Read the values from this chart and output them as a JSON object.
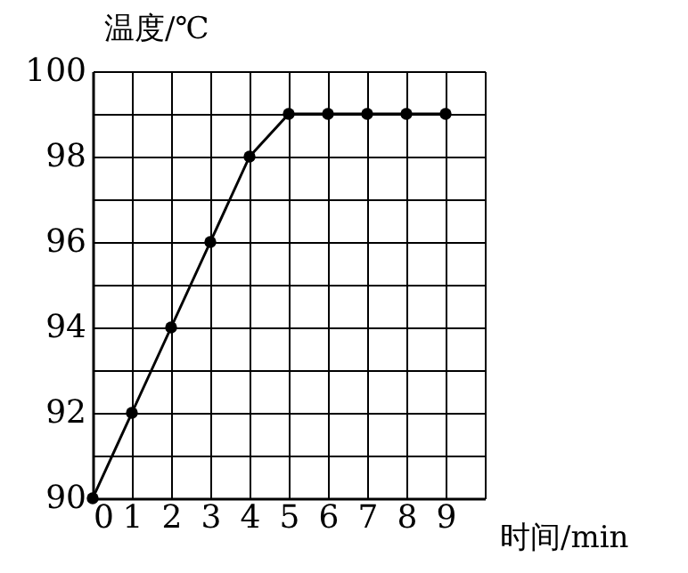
{
  "chart_data": {
    "type": "line",
    "xlabel": "时间/min",
    "ylabel": "温度/℃",
    "x": [
      0,
      1,
      2,
      3,
      4,
      5,
      6,
      7,
      8,
      9
    ],
    "series": [
      {
        "color": "#000000",
        "values": [
          90,
          92,
          94,
          96,
          98,
          99,
          99,
          99,
          99,
          99
        ]
      }
    ],
    "xlim": [
      0,
      10
    ],
    "xticks": [
      0,
      1,
      2,
      3,
      4,
      5,
      6,
      7,
      8,
      9,
      {
        "value": 10,
        "label": null
      }
    ],
    "ylim": [
      90,
      100
    ],
    "yticks": [
      90,
      {
        "value": 91,
        "label": null
      },
      92,
      {
        "value": 93,
        "label": null
      },
      94,
      {
        "value": 95,
        "label": null
      },
      96,
      {
        "value": 97,
        "label": null
      },
      98,
      {
        "value": 99,
        "label": null
      },
      100
    ],
    "grid": true,
    "marker": "circle",
    "line_style": "solid"
  }
}
